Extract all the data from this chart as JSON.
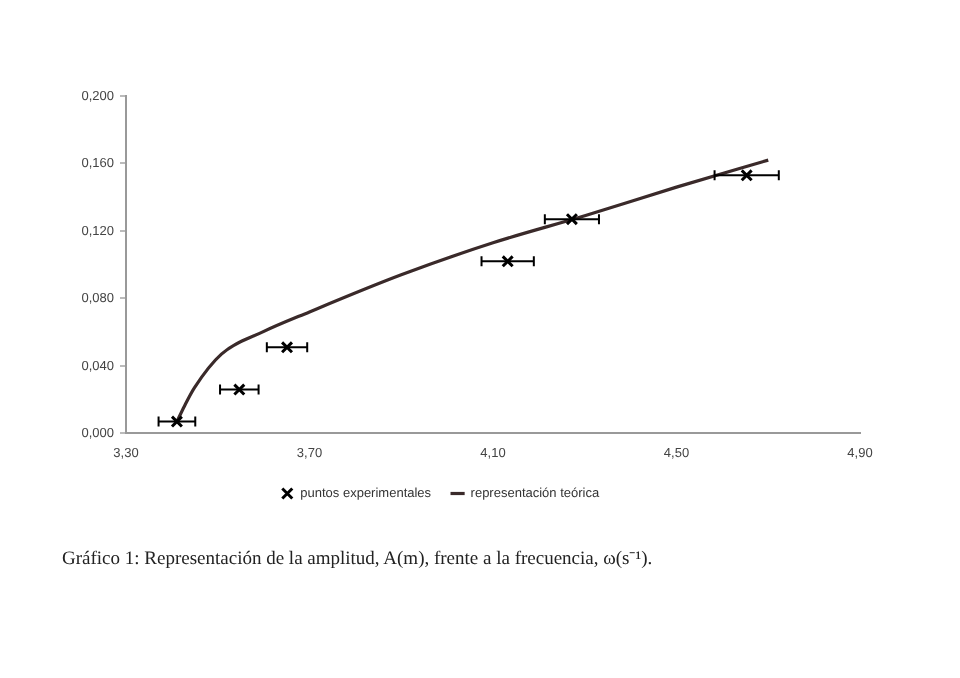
{
  "chart_data": {
    "type": "scatter",
    "xlim": [
      3.3,
      4.9
    ],
    "xticks": [
      {
        "value": 3.3,
        "label": "3,30"
      },
      {
        "value": 3.7,
        "label": "3,70"
      },
      {
        "value": 4.1,
        "label": "4,10"
      },
      {
        "value": 4.5,
        "label": "4,50"
      },
      {
        "value": 4.9,
        "label": "4,90"
      }
    ],
    "ylim": [
      0,
      0.2
    ],
    "yticks": [
      {
        "value": 0,
        "label": "0,000"
      },
      {
        "value": 0.04,
        "label": "0,040"
      },
      {
        "value": 0.08,
        "label": "0,080"
      },
      {
        "value": 0.12,
        "label": "0,120"
      },
      {
        "value": 0.16,
        "label": "0,160"
      },
      {
        "value": 0.2,
        "label": "0,200"
      }
    ],
    "grid": false,
    "legend": "bottom",
    "series": [
      {
        "name": "puntos experimentales",
        "color": "#000000",
        "marker": "cross",
        "x": [
          3.411,
          3.547,
          3.651,
          4.132,
          4.272,
          4.653
        ],
        "values": [
          0.007,
          0.026,
          0.051,
          0.102,
          0.127,
          0.153
        ],
        "xerrors": [
          0.04,
          0.042,
          0.044,
          0.057,
          0.059,
          0.07
        ]
      },
      {
        "name": "representación teórica",
        "type": "line",
        "color": "#3a2a2a",
        "marker": "none",
        "line_style": "solid",
        "x": [
          3.411,
          3.427,
          3.449,
          3.508,
          3.597,
          3.7,
          3.9,
          4.1,
          4.3,
          4.5,
          4.7
        ],
        "values": [
          0.007,
          0.016,
          0.027,
          0.047,
          0.06,
          0.072,
          0.094,
          0.113,
          0.129,
          0.146,
          0.162
        ]
      }
    ],
    "annotations": [
      "Gráfico 1: Representación de la amplitud, A(m), frente a la frecuencia, ω(s⁻¹)."
    ]
  }
}
